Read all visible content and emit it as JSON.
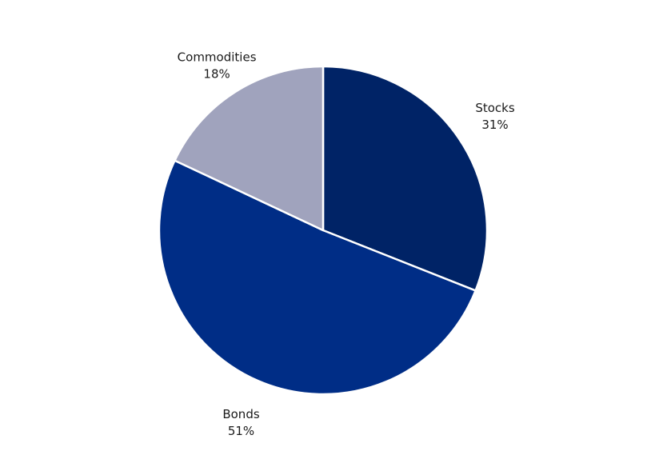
{
  "chart_data": {
    "type": "pie",
    "title": "",
    "slices": [
      {
        "label": "Stocks",
        "value": 31,
        "display": "31%",
        "color": "#002366"
      },
      {
        "label": "Bonds",
        "value": 51,
        "display": "51%",
        "color": "#002d86"
      },
      {
        "label": "Commodities",
        "value": 18,
        "display": "18%",
        "color": "#a0a3bd"
      }
    ],
    "start_angle": "12 o'clock",
    "direction": "clockwise",
    "legend": "none",
    "label_placement": "outside"
  }
}
